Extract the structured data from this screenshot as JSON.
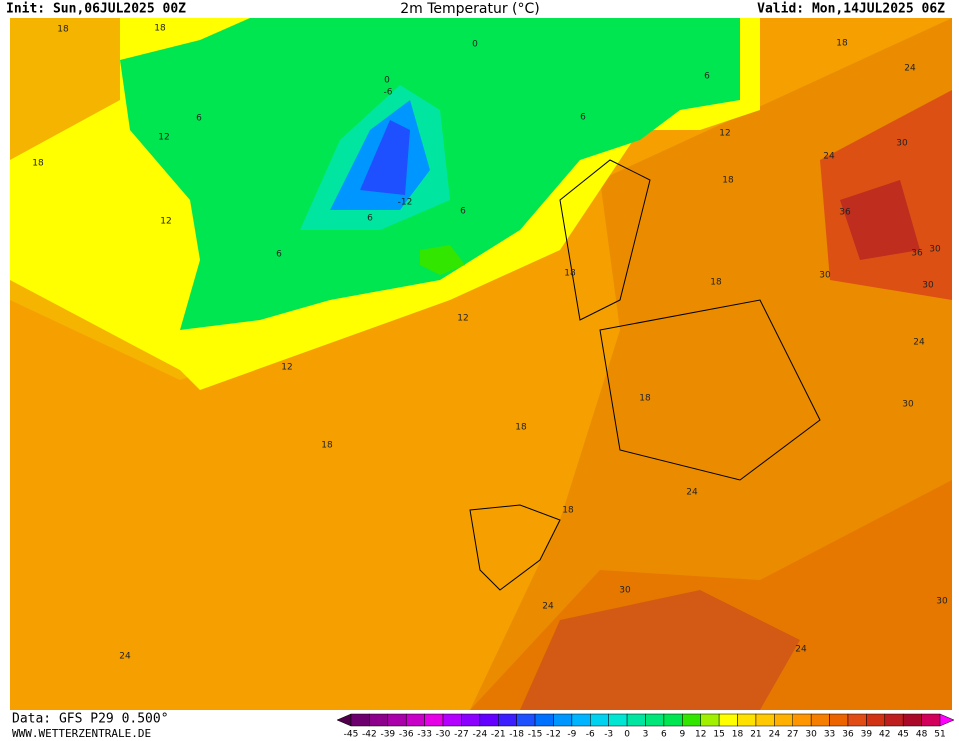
{
  "header": {
    "init": "Init: Sun,06JUL2025 00Z",
    "title": "2m Temperatur (°C)",
    "valid": "Valid: Mon,14JUL2025 06Z"
  },
  "footer": {
    "data": "Data: GFS P29 0.500°",
    "site": "WWW.WETTERZENTRALE.DE"
  },
  "colorbar": {
    "labels": [
      "-45",
      "-42",
      "-39",
      "-36",
      "-33",
      "-30",
      "-27",
      "-24",
      "-21",
      "-18",
      "-15",
      "-12",
      "-9",
      "-6",
      "-3",
      "0",
      "3",
      "6",
      "9",
      "12",
      "15",
      "18",
      "21",
      "24",
      "27",
      "30",
      "33",
      "36",
      "39",
      "42",
      "45",
      "48",
      "51"
    ],
    "colors": [
      "#6e006e",
      "#8c008c",
      "#aa00aa",
      "#c800c8",
      "#e600e6",
      "#b400ff",
      "#8c00ff",
      "#6400ff",
      "#3c1eff",
      "#1e50ff",
      "#0070ff",
      "#0096ff",
      "#00b4ff",
      "#00d2f0",
      "#00e6d2",
      "#00e6a0",
      "#00e678",
      "#00e650",
      "#32e600",
      "#a0f000",
      "#ffff00",
      "#ffe100",
      "#ffc800",
      "#ffb000",
      "#ff9600",
      "#f57d00",
      "#eb6400",
      "#e14b14",
      "#d23214",
      "#be1e1e",
      "#aa0a28",
      "#d2005a"
    ],
    "low_color": "#50004b",
    "high_color": "#ff00ff"
  },
  "contour_labels": [
    "18",
    "18",
    "0",
    "6",
    "12",
    "18",
    "12",
    "0",
    "-6",
    "6",
    "6",
    "12",
    "18",
    "18",
    "24",
    "24",
    "30",
    "36",
    "30",
    "36",
    "30",
    "30",
    "24",
    "30",
    "12",
    "12",
    "-12",
    "6",
    "6",
    "6",
    "18",
    "18",
    "18",
    "18",
    "18",
    "24",
    "18",
    "30",
    "24",
    "30",
    "24",
    "24"
  ]
}
